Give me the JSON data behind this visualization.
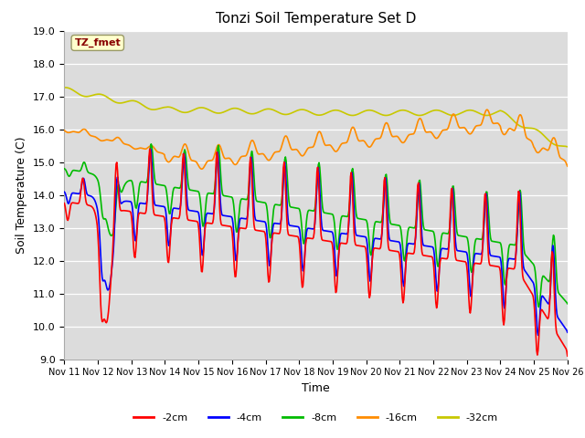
{
  "title": "Tonzi Soil Temperature Set D",
  "xlabel": "Time",
  "ylabel": "Soil Temperature (C)",
  "ylim": [
    9.0,
    19.0
  ],
  "yticks": [
    9.0,
    10.0,
    11.0,
    12.0,
    13.0,
    14.0,
    15.0,
    16.0,
    17.0,
    18.0,
    19.0
  ],
  "x_labels": [
    "Nov 11",
    "Nov 12",
    "Nov 13",
    "Nov 14",
    "Nov 15",
    "Nov 16",
    "Nov 17",
    "Nov 18",
    "Nov 19",
    "Nov 20",
    "Nov 21",
    "Nov 22",
    "Nov 23",
    "Nov 24",
    "Nov 25",
    "Nov 26"
  ],
  "legend_labels": [
    "-2cm",
    "-4cm",
    "-8cm",
    "-16cm",
    "-32cm"
  ],
  "colors": [
    "#ff0000",
    "#0000ff",
    "#00bb00",
    "#ff8c00",
    "#c8c800"
  ],
  "annotation_text": "TZ_fmet",
  "annotation_color": "#880000",
  "annotation_bg": "#ffffcc",
  "bg_color": "#dcdcdc",
  "fig_bg": "#ffffff",
  "spine_color": "#aaaaaa"
}
